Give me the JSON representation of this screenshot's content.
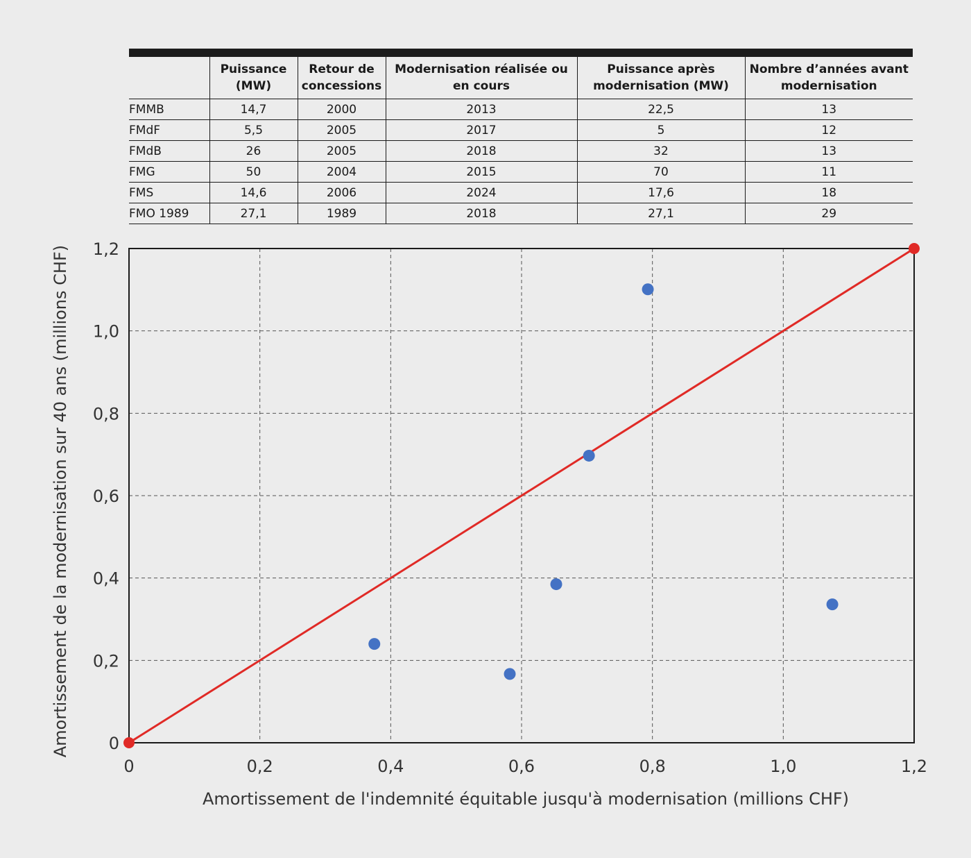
{
  "table": {
    "headers": [
      "",
      "Puissance (MW)",
      "Retour de concessions",
      "Modernisation réalisée ou en cours",
      "Puissance après modernisation (MW)",
      "Nombre d’années avant modernisation"
    ],
    "rows": [
      [
        "FMMB",
        "14,7",
        "2000",
        "2013",
        "22,5",
        "13"
      ],
      [
        "FMdF",
        "5,5",
        "2005",
        "2017",
        "5",
        "12"
      ],
      [
        "FMdB",
        "26",
        "2005",
        "2018",
        "32",
        "13"
      ],
      [
        "FMG",
        "50",
        "2004",
        "2015",
        "70",
        "11"
      ],
      [
        "FMS",
        "14,6",
        "2006",
        "2024",
        "17,6",
        "18"
      ],
      [
        "FMO 1989",
        "27,1",
        "1989",
        "2018",
        "27,1",
        "29"
      ]
    ]
  },
  "chart_data": {
    "type": "scatter",
    "xlabel": "Amortissement de l'indemnité équitable jusqu'à modernisation (millions CHF)",
    "ylabel": "Amortissement de la modernisation sur 40 ans (millions CHF)",
    "xlim": [
      0,
      1.2
    ],
    "ylim": [
      0,
      1.2
    ],
    "x_ticks": [
      0,
      0.2,
      0.4,
      0.6,
      0.8,
      1.0,
      1.2
    ],
    "x_tick_labels": [
      "0",
      "0,2",
      "0,4",
      "0,6",
      "0,8",
      "1,0",
      "1,2"
    ],
    "y_ticks": [
      0,
      0.2,
      0.4,
      0.6,
      0.8,
      1.0,
      1.2
    ],
    "y_tick_labels": [
      "0",
      "0,2",
      "0,4",
      "0,6",
      "0,8",
      "1,0",
      "1,2"
    ],
    "grid": true,
    "series": [
      {
        "type": "scatter",
        "color": "#4472c4",
        "points": [
          {
            "x": 0.375,
            "y": 0.24
          },
          {
            "x": 0.582,
            "y": 0.167
          },
          {
            "x": 0.653,
            "y": 0.385
          },
          {
            "x": 0.703,
            "y": 0.697
          },
          {
            "x": 0.793,
            "y": 1.101
          },
          {
            "x": 1.075,
            "y": 0.336
          }
        ]
      },
      {
        "type": "line",
        "color": "#e02a26",
        "points": [
          {
            "x": 0,
            "y": 0
          },
          {
            "x": 1.2,
            "y": 1.2
          }
        ]
      }
    ]
  }
}
